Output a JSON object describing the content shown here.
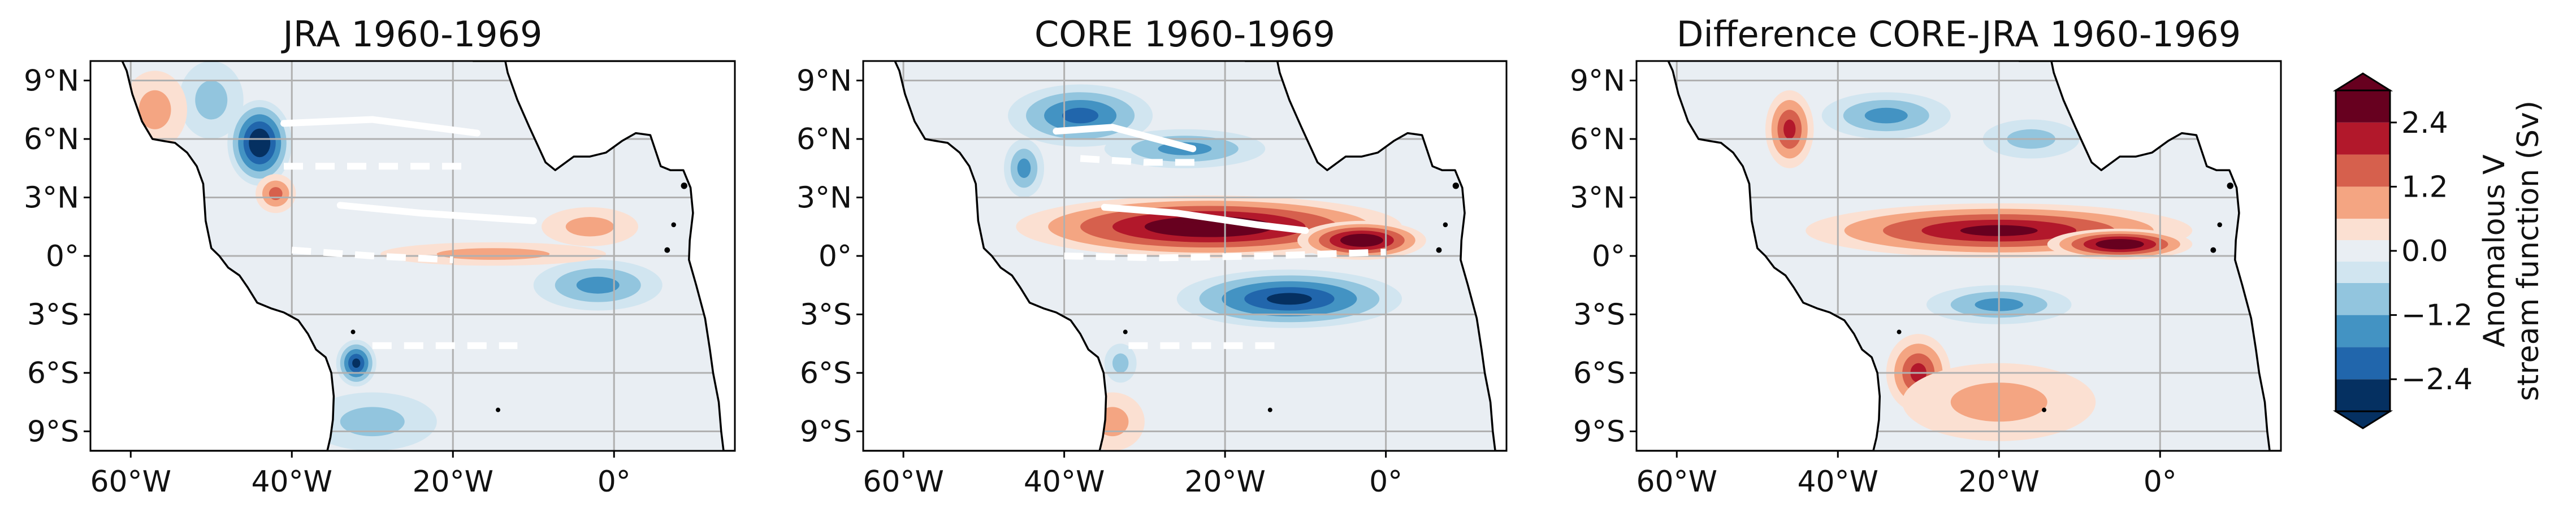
{
  "chart_data": [
    {
      "type": "heatmap",
      "title": "JRA 1960-1969",
      "xlabel": "",
      "ylabel": "",
      "x_ticks": [
        "60°W",
        "40°W",
        "20°W",
        "0°"
      ],
      "y_ticks": [
        "9°N",
        "6°N",
        "3°N",
        "0°",
        "3°S",
        "6°S",
        "9°S"
      ],
      "xlim": [
        -65,
        15
      ],
      "ylim": [
        -10,
        10
      ],
      "features": [
        {
          "lon": -44,
          "lat": 5.8,
          "value": -3.0,
          "rx": 4,
          "ry": 2.2
        },
        {
          "lon": -50,
          "lat": 8.0,
          "value": -1.0,
          "rx": 4,
          "ry": 2
        },
        {
          "lon": -57,
          "lat": 7.5,
          "value": 0.8,
          "rx": 4,
          "ry": 2
        },
        {
          "lon": -42,
          "lat": 3.2,
          "value": 1.2,
          "rx": 2.5,
          "ry": 1
        },
        {
          "lon": -32,
          "lat": -5.5,
          "value": -2.6,
          "rx": 2.5,
          "ry": 1.2
        },
        {
          "lon": -2,
          "lat": -1.5,
          "value": -1.4,
          "rx": 8,
          "ry": 1.3
        },
        {
          "lon": -15,
          "lat": 0.1,
          "value": 0.7,
          "rx": 14,
          "ry": 0.6
        },
        {
          "lon": -3,
          "lat": 1.5,
          "value": 0.6,
          "rx": 6,
          "ry": 1
        },
        {
          "lon": -30,
          "lat": -8.5,
          "value": -0.7,
          "rx": 8,
          "ry": 1.5
        }
      ],
      "lines": [
        {
          "style": "solid",
          "points": [
            [
              -41,
              6.8
            ],
            [
              -30,
              7.0
            ],
            [
              -17,
              6.3
            ]
          ]
        },
        {
          "style": "dashed",
          "points": [
            [
              -41,
              4.6
            ],
            [
              -33,
              4.6
            ],
            [
              -18,
              4.6
            ]
          ]
        },
        {
          "style": "solid",
          "points": [
            [
              -34,
              2.6
            ],
            [
              -24,
              2.2
            ],
            [
              -10,
              1.8
            ]
          ]
        },
        {
          "style": "dashed",
          "points": [
            [
              -40,
              0.3
            ],
            [
              -30,
              0.0
            ],
            [
              -20,
              -0.2
            ]
          ]
        },
        {
          "style": "dashed",
          "points": [
            [
              -30,
              -4.6
            ],
            [
              -20,
              -4.6
            ],
            [
              -12,
              -4.6
            ]
          ]
        }
      ]
    },
    {
      "type": "heatmap",
      "title": "CORE 1960-1969",
      "xlabel": "",
      "ylabel": "",
      "x_ticks": [
        "60°W",
        "40°W",
        "20°W",
        "0°"
      ],
      "y_ticks": [
        "9°N",
        "6°N",
        "3°N",
        "0°",
        "3°S",
        "6°S",
        "9°S"
      ],
      "xlim": [
        -65,
        15
      ],
      "ylim": [
        -10,
        10
      ],
      "features": [
        {
          "lon": -22,
          "lat": 1.5,
          "value": 3.0,
          "rx": 24,
          "ry": 1.6
        },
        {
          "lon": -3,
          "lat": 0.8,
          "value": 3.0,
          "rx": 8,
          "ry": 1
        },
        {
          "lon": -38,
          "lat": 7.2,
          "value": -1.8,
          "rx": 9,
          "ry": 1.6
        },
        {
          "lon": -25,
          "lat": 5.5,
          "value": -1.2,
          "rx": 10,
          "ry": 1
        },
        {
          "lon": -45,
          "lat": 4.5,
          "value": -1.6,
          "rx": 2.5,
          "ry": 1.5
        },
        {
          "lon": -12,
          "lat": -2.2,
          "value": -2.6,
          "rx": 14,
          "ry": 1.5
        },
        {
          "lon": -33,
          "lat": -5.5,
          "value": -1.0,
          "rx": 2,
          "ry": 1
        },
        {
          "lon": -34,
          "lat": -8.5,
          "value": 0.8,
          "rx": 4,
          "ry": 1.5
        }
      ],
      "lines": [
        {
          "style": "solid",
          "points": [
            [
              -41,
              6.4
            ],
            [
              -34,
              6.6
            ],
            [
              -24,
              5.5
            ]
          ]
        },
        {
          "style": "dashed",
          "points": [
            [
              -38,
              5.0
            ],
            [
              -30,
              4.8
            ],
            [
              -23,
              4.8
            ]
          ]
        },
        {
          "style": "solid",
          "points": [
            [
              -35,
              2.5
            ],
            [
              -26,
              2.2
            ],
            [
              -16,
              1.6
            ],
            [
              -10,
              1.3
            ]
          ]
        },
        {
          "style": "dashed",
          "points": [
            [
              -40,
              0.0
            ],
            [
              -28,
              -0.1
            ],
            [
              -15,
              0.0
            ],
            [
              0,
              0.2
            ]
          ]
        },
        {
          "style": "dashed",
          "points": [
            [
              -32,
              -4.6
            ],
            [
              -24,
              -4.6
            ],
            [
              -13,
              -4.6
            ]
          ]
        }
      ]
    },
    {
      "type": "heatmap",
      "title": "Difference CORE-JRA 1960-1969",
      "xlabel": "",
      "ylabel": "",
      "x_ticks": [
        "60°W",
        "40°W",
        "20°W",
        "0°"
      ],
      "y_ticks": [
        "9°N",
        "6°N",
        "3°N",
        "0°",
        "3°S",
        "6°S",
        "9°S"
      ],
      "xlim": [
        -65,
        15
      ],
      "ylim": [
        -10,
        10
      ],
      "features": [
        {
          "lon": -20,
          "lat": 1.3,
          "value": 2.6,
          "rx": 24,
          "ry": 1.4
        },
        {
          "lon": -5,
          "lat": 0.6,
          "value": 3.0,
          "rx": 9,
          "ry": 0.8
        },
        {
          "lon": -46,
          "lat": 6.5,
          "value": 2.2,
          "rx": 3,
          "ry": 2
        },
        {
          "lon": -34,
          "lat": 7.2,
          "value": -1.2,
          "rx": 8,
          "ry": 1.2
        },
        {
          "lon": -16,
          "lat": 6.0,
          "value": -0.8,
          "rx": 6,
          "ry": 1
        },
        {
          "lon": -20,
          "lat": -2.5,
          "value": -1.4,
          "rx": 9,
          "ry": 1
        },
        {
          "lon": -30,
          "lat": -6.0,
          "value": 2.0,
          "rx": 4,
          "ry": 2
        },
        {
          "lon": -20,
          "lat": -7.5,
          "value": 1.0,
          "rx": 12,
          "ry": 2
        }
      ],
      "lines": []
    }
  ],
  "colorbar": {
    "label_line1": "Anomalous V",
    "label_line2": "stream function (Sv)",
    "ticks": [
      "2.4",
      "1.2",
      "0.0",
      "−1.2",
      "−2.4"
    ],
    "tick_values": [
      2.4,
      1.2,
      0.0,
      -1.2,
      -2.4
    ],
    "levels": [
      -3.0,
      -2.4,
      -1.8,
      -1.2,
      -0.6,
      -0.2,
      0.2,
      0.6,
      1.2,
      1.8,
      2.4,
      3.0
    ],
    "colors": [
      "#053061",
      "#2166ac",
      "#4393c3",
      "#92c5de",
      "#d1e5f0",
      "#e9eef3",
      "#fbe0d2",
      "#f4a582",
      "#d6604d",
      "#b2182b",
      "#67001f"
    ]
  },
  "colors": {
    "land": "#ffffff",
    "coast": "#000000",
    "grid": "#b0b0b0",
    "contour_line": "#ffffff"
  }
}
